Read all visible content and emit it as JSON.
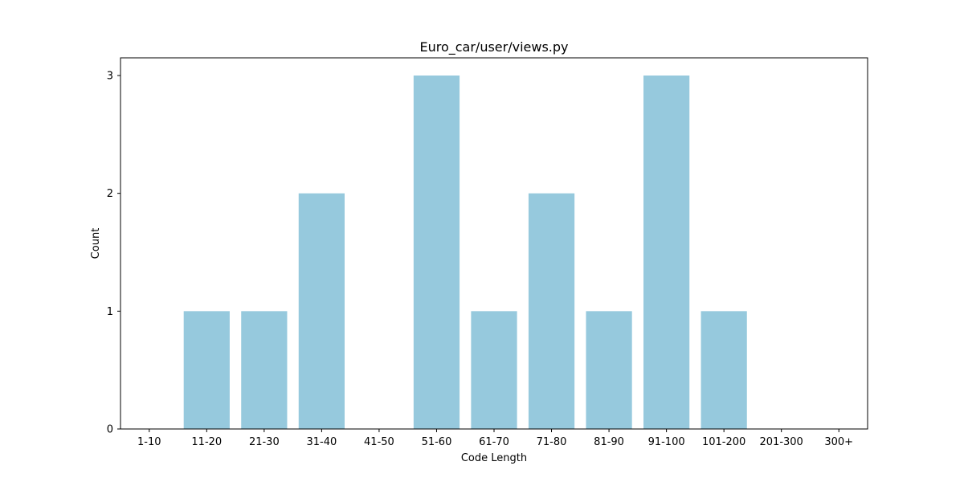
{
  "chart_data": {
    "type": "bar",
    "title": "Euro_car/user/views.py",
    "xlabel": "Code Length",
    "ylabel": "Count",
    "categories": [
      "1-10",
      "11-20",
      "21-30",
      "31-40",
      "41-50",
      "51-60",
      "61-70",
      "71-80",
      "81-90",
      "91-100",
      "101-200",
      "201-300",
      "300+"
    ],
    "values": [
      0,
      1,
      1,
      2,
      0,
      3,
      1,
      2,
      1,
      3,
      1,
      0,
      0
    ],
    "ylim": [
      0,
      3.15
    ],
    "yticks": [
      0,
      1,
      2,
      3
    ],
    "grid": false,
    "bar_color": "#96c9dd"
  }
}
